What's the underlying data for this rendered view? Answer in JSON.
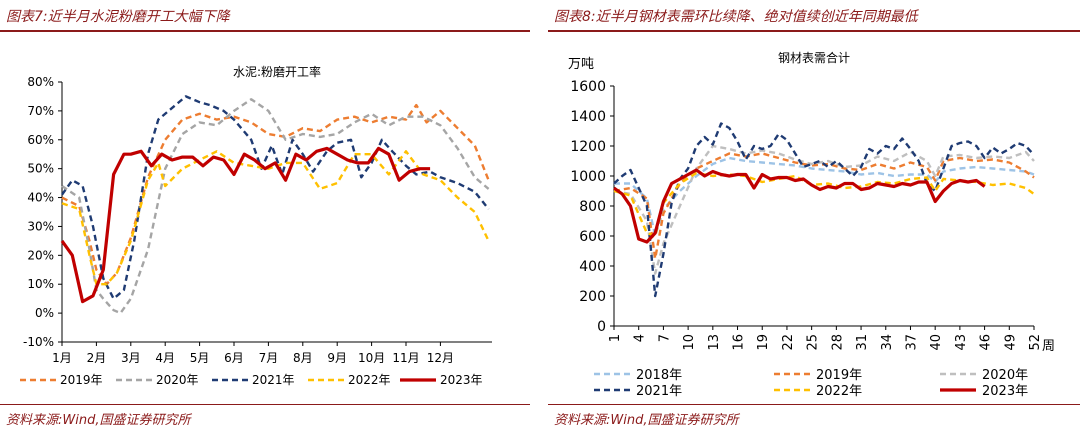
{
  "panels": [
    {
      "figure_title": "图表7:近半月水泥粉磨开工大幅下降",
      "source": "资料来源:Wind,国盛证券研究所"
    },
    {
      "figure_title": "图表8:近半月钢材表需环比续降、绝对值续创近年同期最低",
      "source": "资料来源:Wind,国盛证券研究所"
    }
  ],
  "chart_data": [
    {
      "type": "line",
      "title": "水泥:粉磨开工率",
      "xlabel": "",
      "ylabel": "",
      "x_range": [
        0,
        12.5
      ],
      "x_ticks": [
        {
          "x": 0,
          "label": "1月"
        },
        {
          "x": 1,
          "label": "2月"
        },
        {
          "x": 2,
          "label": "3月"
        },
        {
          "x": 3,
          "label": "4月"
        },
        {
          "x": 4,
          "label": "5月"
        },
        {
          "x": 5,
          "label": "6月"
        },
        {
          "x": 6,
          "label": "7月"
        },
        {
          "x": 7,
          "label": "8月"
        },
        {
          "x": 8,
          "label": "9月"
        },
        {
          "x": 9,
          "label": "10月"
        },
        {
          "x": 10,
          "label": "11月"
        },
        {
          "x": 11,
          "label": "12月"
        }
      ],
      "ylim": [
        -10,
        80
      ],
      "y_ticks": [
        -10,
        0,
        10,
        20,
        30,
        40,
        50,
        60,
        70,
        80
      ],
      "y_tick_labels": [
        "-10%",
        "0%",
        "10%",
        "20%",
        "30%",
        "40%",
        "50%",
        "60%",
        "70%",
        "80%"
      ],
      "legend_position": "bottom",
      "series": [
        {
          "name": "2019年",
          "color": "#ed7d31",
          "dash": "6,4",
          "x": [
            0,
            0.5,
            0.8,
            1.0,
            1.3,
            1.6,
            2.0,
            2.5,
            3.0,
            3.5,
            4.0,
            4.5,
            5.0,
            5.5,
            6.0,
            6.5,
            7.0,
            7.5,
            8.0,
            8.5,
            9.0,
            9.5,
            10.0,
            10.3,
            10.6,
            11.0,
            11.5,
            12.0,
            12.4
          ],
          "y": [
            40,
            37,
            25,
            15,
            10,
            14,
            26,
            47,
            60,
            67,
            69,
            67,
            68,
            66,
            62,
            61,
            64,
            63,
            67,
            68,
            66,
            68,
            67,
            72,
            66,
            70,
            64,
            58,
            46
          ]
        },
        {
          "name": "2020年",
          "color": "#a5a5a5",
          "dash": "6,4",
          "x": [
            0,
            0.5,
            0.8,
            1.0,
            1.2,
            1.5,
            1.7,
            2.0,
            2.5,
            3.0,
            3.5,
            4.0,
            4.5,
            5.0,
            5.5,
            6.0,
            6.5,
            7.0,
            7.5,
            8.0,
            8.5,
            9.0,
            9.5,
            10.0,
            10.5,
            11.0,
            11.5,
            12.0,
            12.4
          ],
          "y": [
            44,
            40,
            22,
            8,
            5,
            1,
            0,
            5,
            22,
            50,
            62,
            66,
            65,
            70,
            74,
            70,
            60,
            62,
            61,
            62,
            66,
            69,
            65,
            68,
            68,
            65,
            57,
            47,
            43
          ]
        },
        {
          "name": "2021年",
          "color": "#1f3b73",
          "dash": "6,4",
          "x": [
            0,
            0.3,
            0.6,
            0.9,
            1.2,
            1.5,
            1.8,
            2.1,
            2.5,
            2.8,
            3.1,
            3.6,
            4.0,
            4.3,
            4.7,
            5.0,
            5.5,
            5.8,
            6.1,
            6.4,
            6.7,
            7.0,
            7.3,
            7.7,
            8.0,
            8.4,
            8.7,
            9.0,
            9.3,
            9.6,
            10.0,
            10.3,
            10.7,
            11.0,
            11.5,
            12.0,
            12.4
          ],
          "y": [
            41,
            46,
            44,
            30,
            12,
            5,
            8,
            25,
            55,
            67,
            70,
            75,
            73,
            72,
            70,
            67,
            60,
            50,
            58,
            48,
            60,
            55,
            49,
            56,
            59,
            60,
            47,
            52,
            60,
            56,
            51,
            48,
            49,
            47,
            45,
            42,
            36
          ]
        },
        {
          "name": "2022年",
          "color": "#ffc000",
          "dash": "6,4",
          "x": [
            0,
            0.5,
            0.8,
            1.0,
            1.3,
            1.6,
            2.0,
            2.5,
            2.8,
            3.0,
            3.5,
            4.0,
            4.5,
            5.0,
            5.5,
            6.0,
            6.5,
            7.0,
            7.5,
            8.0,
            8.5,
            9.0,
            9.5,
            10.0,
            10.5,
            11.0,
            11.5,
            12.0,
            12.4
          ],
          "y": [
            38,
            36,
            20,
            10,
            10,
            14,
            25,
            46,
            52,
            44,
            50,
            53,
            56,
            52,
            51,
            50,
            52,
            52,
            43,
            45,
            55,
            55,
            48,
            56,
            48,
            46,
            40,
            35,
            25
          ]
        },
        {
          "name": "2023年",
          "color": "#c00000",
          "dash": "",
          "x": [
            0,
            0.3,
            0.6,
            0.9,
            1.2,
            1.5,
            1.8,
            2.0,
            2.3,
            2.6,
            2.9,
            3.2,
            3.5,
            3.8,
            4.1,
            4.4,
            4.7,
            5.0,
            5.3,
            5.6,
            5.9,
            6.2,
            6.5,
            6.8,
            7.1,
            7.4,
            7.7,
            8.0,
            8.3,
            8.6,
            8.9,
            9.2,
            9.5,
            9.8,
            10.1,
            10.4,
            10.7
          ],
          "y": [
            25,
            20,
            4,
            6,
            15,
            48,
            55,
            55,
            56,
            51,
            55,
            53,
            54,
            54,
            51,
            54,
            53,
            48,
            55,
            53,
            50,
            52,
            46,
            55,
            53,
            56,
            57,
            55,
            53,
            52,
            52,
            57,
            55,
            46,
            49,
            50,
            50
          ]
        }
      ]
    },
    {
      "type": "line",
      "title": "钢材表需合计",
      "xlabel": "周",
      "ylabel": "万吨",
      "x_range": [
        1,
        52
      ],
      "x_ticks": [
        1,
        4,
        7,
        10,
        13,
        16,
        19,
        22,
        25,
        28,
        31,
        34,
        37,
        40,
        43,
        46,
        49,
        52
      ],
      "ylim": [
        0,
        1600
      ],
      "y_ticks": [
        0,
        200,
        400,
        600,
        800,
        1000,
        1200,
        1400,
        1600
      ],
      "legend_position": "bottom",
      "series": [
        {
          "name": "2018年",
          "color": "#9dc3e6",
          "dash": "6,4",
          "x": [
            1,
            3,
            5,
            6,
            7,
            9,
            11,
            13,
            15,
            17,
            19,
            21,
            23,
            25,
            27,
            29,
            31,
            33,
            35,
            37,
            39,
            40,
            41,
            43,
            45,
            47,
            49,
            51,
            52
          ],
          "y": [
            950,
            950,
            850,
            600,
            780,
            900,
            1000,
            1080,
            1120,
            1100,
            1090,
            1080,
            1070,
            1050,
            1040,
            1030,
            1010,
            1020,
            1000,
            1010,
            1010,
            960,
            1030,
            1050,
            1060,
            1050,
            1040,
            1030,
            1010
          ]
        },
        {
          "name": "2019年",
          "color": "#ed7d31",
          "dash": "6,4",
          "x": [
            1,
            3,
            5,
            6,
            7,
            9,
            11,
            13,
            15,
            17,
            19,
            21,
            23,
            25,
            27,
            29,
            31,
            33,
            35,
            37,
            39,
            40,
            41,
            43,
            45,
            47,
            49,
            51,
            52
          ],
          "y": [
            900,
            920,
            850,
            450,
            750,
            950,
            1050,
            1100,
            1150,
            1130,
            1150,
            1120,
            1090,
            1070,
            1080,
            1050,
            1040,
            1080,
            1050,
            1090,
            1060,
            970,
            1100,
            1120,
            1100,
            1110,
            1090,
            1030,
            990
          ]
        },
        {
          "name": "2020年",
          "color": "#bfbfbf",
          "dash": "6,4",
          "x": [
            1,
            3,
            5,
            6,
            7,
            9,
            11,
            13,
            15,
            17,
            19,
            21,
            23,
            25,
            27,
            29,
            31,
            33,
            35,
            37,
            39,
            40,
            41,
            43,
            45,
            47,
            49,
            51,
            52
          ],
          "y": [
            900,
            880,
            700,
            350,
            550,
            800,
            1050,
            1200,
            1180,
            1150,
            1170,
            1150,
            1110,
            1080,
            1100,
            1060,
            1070,
            1130,
            1100,
            1160,
            1100,
            1000,
            1130,
            1140,
            1120,
            1130,
            1120,
            1160,
            1100
          ]
        },
        {
          "name": "2021年",
          "color": "#1f3b73",
          "dash": "6,4",
          "x": [
            1,
            2,
            3,
            4,
            5,
            6,
            7,
            8,
            9,
            10,
            11,
            12,
            13,
            14,
            15,
            16,
            17,
            18,
            19,
            20,
            21,
            22,
            23,
            24,
            25,
            26,
            27,
            28,
            29,
            30,
            31,
            32,
            33,
            34,
            35,
            36,
            37,
            38,
            39,
            40,
            41,
            42,
            43,
            44,
            45,
            46,
            47,
            48,
            49,
            50,
            51,
            52
          ],
          "y": [
            950,
            1000,
            1040,
            920,
            800,
            200,
            480,
            820,
            980,
            1050,
            1200,
            1260,
            1210,
            1350,
            1320,
            1230,
            1110,
            1200,
            1180,
            1200,
            1280,
            1240,
            1150,
            1060,
            1080,
            1100,
            1060,
            1100,
            1050,
            1000,
            1060,
            1180,
            1150,
            1200,
            1180,
            1250,
            1180,
            1100,
            950,
            900,
            1050,
            1200,
            1220,
            1230,
            1200,
            1120,
            1190,
            1150,
            1180,
            1220,
            1200,
            1140
          ]
        },
        {
          "name": "2022年",
          "color": "#ffc000",
          "dash": "6,4",
          "x": [
            1,
            3,
            5,
            6,
            7,
            9,
            11,
            13,
            15,
            17,
            19,
            21,
            23,
            25,
            27,
            29,
            31,
            33,
            35,
            37,
            39,
            40,
            41,
            43,
            45,
            47,
            49,
            51,
            52
          ],
          "y": [
            900,
            870,
            620,
            600,
            820,
            950,
            1020,
            1000,
            1010,
            1000,
            960,
            980,
            1000,
            940,
            950,
            920,
            930,
            960,
            950,
            980,
            990,
            900,
            980,
            970,
            960,
            940,
            950,
            920,
            880
          ]
        },
        {
          "name": "2023年",
          "color": "#c00000",
          "dash": "",
          "x": [
            1,
            2,
            3,
            4,
            5,
            6,
            7,
            8,
            9,
            10,
            11,
            12,
            13,
            14,
            15,
            16,
            17,
            18,
            19,
            20,
            21,
            22,
            23,
            24,
            25,
            26,
            27,
            28,
            29,
            30,
            31,
            32,
            33,
            34,
            35,
            36,
            37,
            38,
            39,
            40,
            41,
            42,
            43,
            44,
            45,
            46
          ],
          "y": [
            920,
            880,
            800,
            580,
            560,
            620,
            830,
            950,
            980,
            1010,
            1040,
            1000,
            1030,
            1010,
            1000,
            1010,
            1010,
            920,
            1010,
            980,
            990,
            990,
            970,
            980,
            940,
            910,
            930,
            920,
            950,
            950,
            910,
            920,
            950,
            940,
            930,
            950,
            940,
            960,
            960,
            830,
            900,
            950,
            970,
            960,
            970,
            930
          ]
        }
      ]
    }
  ]
}
